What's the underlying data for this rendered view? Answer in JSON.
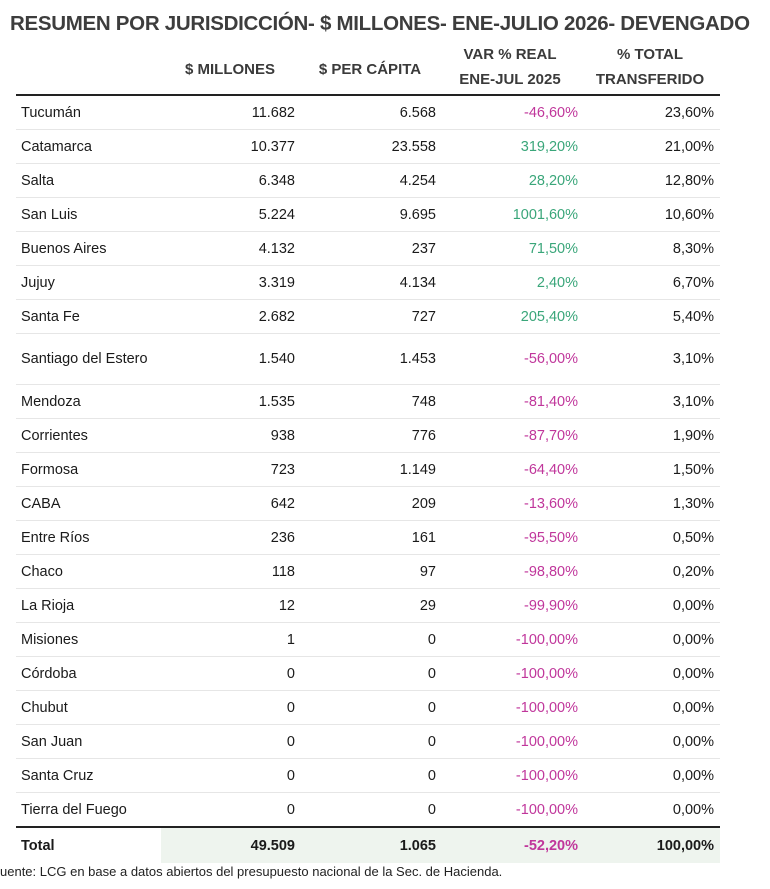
{
  "title": "RESUMEN POR JURISDICCIÓN- $ MILLONES- ENE-JULIO 2026- DEVENGADO",
  "headers": {
    "millones": "$ MILLONES",
    "per_capita": "$ PER CÁPITA",
    "var_line1": "VAR % REAL",
    "var_line2": "ENE-JUL 2025",
    "total_line1": "% TOTAL",
    "total_line2": "TRANSFERIDO"
  },
  "rows": [
    {
      "name": "Tucumán",
      "millones": "11.682",
      "per_capita": "6.568",
      "var": "-46,60%",
      "pct": "23,60%",
      "sign": "neg"
    },
    {
      "name": "Catamarca",
      "millones": "10.377",
      "per_capita": "23.558",
      "var": "319,20%",
      "pct": "21,00%",
      "sign": "pos"
    },
    {
      "name": "Salta",
      "millones": "6.348",
      "per_capita": "4.254",
      "var": "28,20%",
      "pct": "12,80%",
      "sign": "pos"
    },
    {
      "name": "San Luis",
      "millones": "5.224",
      "per_capita": "9.695",
      "var": "1001,60%",
      "pct": "10,60%",
      "sign": "pos"
    },
    {
      "name": "Buenos Aires",
      "millones": "4.132",
      "per_capita": "237",
      "var": "71,50%",
      "pct": "8,30%",
      "sign": "pos"
    },
    {
      "name": "Jujuy",
      "millones": "3.319",
      "per_capita": "4.134",
      "var": "2,40%",
      "pct": "6,70%",
      "sign": "pos"
    },
    {
      "name": "Santa Fe",
      "millones": "2.682",
      "per_capita": "727",
      "var": "205,40%",
      "pct": "5,40%",
      "sign": "pos"
    },
    {
      "name": "Santiago del Estero",
      "millones": "1.540",
      "per_capita": "1.453",
      "var": "-56,00%",
      "pct": "3,10%",
      "sign": "neg"
    },
    {
      "name": "Mendoza",
      "millones": "1.535",
      "per_capita": "748",
      "var": "-81,40%",
      "pct": "3,10%",
      "sign": "neg"
    },
    {
      "name": "Corrientes",
      "millones": "938",
      "per_capita": "776",
      "var": "-87,70%",
      "pct": "1,90%",
      "sign": "neg"
    },
    {
      "name": "Formosa",
      "millones": "723",
      "per_capita": "1.149",
      "var": "-64,40%",
      "pct": "1,50%",
      "sign": "neg"
    },
    {
      "name": "CABA",
      "millones": "642",
      "per_capita": "209",
      "var": "-13,60%",
      "pct": "1,30%",
      "sign": "neg"
    },
    {
      "name": "Entre Ríos",
      "millones": "236",
      "per_capita": "161",
      "var": "-95,50%",
      "pct": "0,50%",
      "sign": "neg"
    },
    {
      "name": "Chaco",
      "millones": "118",
      "per_capita": "97",
      "var": "-98,80%",
      "pct": "0,20%",
      "sign": "neg"
    },
    {
      "name": "La Rioja",
      "millones": "12",
      "per_capita": "29",
      "var": "-99,90%",
      "pct": "0,00%",
      "sign": "neg"
    },
    {
      "name": "Misiones",
      "millones": "1",
      "per_capita": "0",
      "var": "-100,00%",
      "pct": "0,00%",
      "sign": "neg"
    },
    {
      "name": "Córdoba",
      "millones": "0",
      "per_capita": "0",
      "var": "-100,00%",
      "pct": "0,00%",
      "sign": "neg"
    },
    {
      "name": "Chubut",
      "millones": "0",
      "per_capita": "0",
      "var": "-100,00%",
      "pct": "0,00%",
      "sign": "neg"
    },
    {
      "name": "San Juan",
      "millones": "0",
      "per_capita": "0",
      "var": "-100,00%",
      "pct": "0,00%",
      "sign": "neg"
    },
    {
      "name": "Santa Cruz",
      "millones": "0",
      "per_capita": "0",
      "var": "-100,00%",
      "pct": "0,00%",
      "sign": "neg"
    },
    {
      "name": "Tierra del Fuego",
      "millones": "0",
      "per_capita": "0",
      "var": "-100,00%",
      "pct": "0,00%",
      "sign": "neg"
    }
  ],
  "total": {
    "name": "Total",
    "millones": "49.509",
    "per_capita": "1.065",
    "var": "-52,20%",
    "pct": "100,00%"
  },
  "colors": {
    "negative": "#c0369b",
    "positive": "#3aa67a",
    "total_fill": "#eef4ee"
  },
  "source": "uente: LCG en base a datos abiertos del presupuesto nacional de la Sec. de Hacienda."
}
